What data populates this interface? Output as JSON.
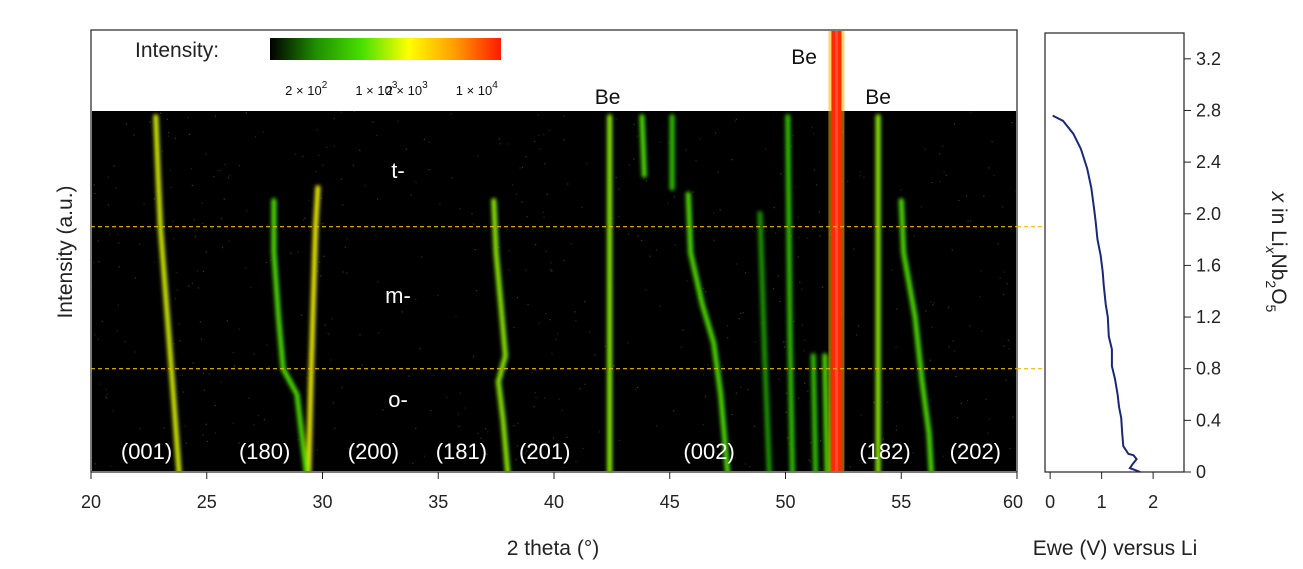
{
  "chart_data": [
    {
      "type": "heatmap",
      "title": "",
      "xlabel": "2 theta (°)",
      "ylabel": "Intensity (a.u.)",
      "xlim": [
        20,
        60
      ],
      "xticks": [
        20,
        25,
        30,
        35,
        40,
        45,
        50,
        55,
        60
      ],
      "colorbar": {
        "label": "Intensity:",
        "scale": "log",
        "ticks": [
          {
            "value": 200,
            "base": "2 × 10",
            "exp": "2"
          },
          {
            "value": 1000,
            "base": "1 × 10",
            "exp": "3"
          },
          {
            "value": 2000,
            "base": "2 × 10",
            "exp": "3"
          },
          {
            "value": 10000,
            "base": "1 × 10",
            "exp": "4"
          }
        ],
        "colors": [
          "#000000",
          "#1f8f00",
          "#49e000",
          "#ffff00",
          "#ff9d00",
          "#ff1a00"
        ]
      },
      "phases": [
        "t-",
        "m-",
        "o-"
      ],
      "phase_boundaries_x": [
        1.9,
        0.8
      ],
      "peak_labels": [
        {
          "text": "(001)",
          "x": 22.4
        },
        {
          "text": "(180)",
          "x": 27.5
        },
        {
          "text": "(200)",
          "x": 32.2
        },
        {
          "text": "(181)",
          "x": 36.0
        },
        {
          "text": "(201)",
          "x": 39.6
        },
        {
          "text": "(002)",
          "x": 46.7
        },
        {
          "text": "(182)",
          "x": 54.3
        },
        {
          "text": "(202)",
          "x": 58.2
        }
      ],
      "be_peaks": [
        {
          "text": "Be",
          "x": 42.4
        },
        {
          "text": "Be",
          "x": 52.1
        },
        {
          "text": "Be",
          "x": 54.0
        }
      ],
      "traces": [
        {
          "name": "(001)",
          "intensity": 0.72,
          "points": [
            [
              22.8,
              2.75
            ],
            [
              22.9,
              2.3
            ],
            [
              23.0,
              1.9
            ],
            [
              23.3,
              1.2
            ],
            [
              23.6,
              0.5
            ],
            [
              23.8,
              0.0
            ]
          ]
        },
        {
          "name": "(180) strong",
          "intensity": 0.75,
          "points": [
            [
              29.8,
              2.2
            ],
            [
              29.7,
              1.9
            ],
            [
              29.6,
              1.3
            ],
            [
              29.5,
              0.7
            ],
            [
              29.4,
              0.0
            ]
          ]
        },
        {
          "name": "(180) weak",
          "intensity": 0.55,
          "points": [
            [
              27.9,
              2.1
            ],
            [
              27.9,
              1.7
            ],
            [
              28.1,
              1.2
            ],
            [
              28.3,
              0.8
            ],
            [
              28.9,
              0.6
            ],
            [
              29.3,
              0.0
            ]
          ]
        },
        {
          "name": "(201)",
          "intensity": 0.6,
          "points": [
            [
              37.4,
              2.1
            ],
            [
              37.5,
              1.7
            ],
            [
              37.7,
              1.3
            ],
            [
              37.9,
              0.9
            ],
            [
              37.6,
              0.7
            ],
            [
              37.8,
              0.4
            ],
            [
              38.0,
              0.0
            ]
          ]
        },
        {
          "name": "(002)",
          "intensity": 0.55,
          "points": [
            [
              45.8,
              2.15
            ],
            [
              45.9,
              1.7
            ],
            [
              46.4,
              1.3
            ],
            [
              46.9,
              1.0
            ],
            [
              47.2,
              0.6
            ],
            [
              47.4,
              0.2
            ],
            [
              47.5,
              0.0
            ]
          ]
        },
        {
          "name": "(202)",
          "intensity": 0.5,
          "points": [
            [
              55.0,
              2.1
            ],
            [
              55.1,
              1.7
            ],
            [
              55.6,
              1.2
            ],
            [
              55.9,
              0.7
            ],
            [
              56.2,
              0.3
            ],
            [
              56.3,
              0.0
            ]
          ]
        },
        {
          "name": "Be 42.4",
          "intensity": 0.6,
          "points": [
            [
              42.4,
              2.75
            ],
            [
              42.4,
              0.0
            ]
          ]
        },
        {
          "name": "Be 54.0",
          "intensity": 0.65,
          "points": [
            [
              54.0,
              2.75
            ],
            [
              54.0,
              0.0
            ]
          ]
        },
        {
          "name": "45.1 line",
          "intensity": 0.45,
          "points": [
            [
              45.1,
              2.75
            ],
            [
              45.1,
              2.2
            ]
          ]
        },
        {
          "name": "43.8 blob",
          "intensity": 0.55,
          "points": [
            [
              43.8,
              2.75
            ],
            [
              43.9,
              2.3
            ]
          ]
        },
        {
          "name": "50.3 line",
          "intensity": 0.45,
          "points": [
            [
              50.1,
              2.75
            ],
            [
              50.2,
              1.0
            ],
            [
              50.3,
              0.0
            ]
          ]
        },
        {
          "name": "51.3 line",
          "intensity": 0.45,
          "points": [
            [
              51.2,
              0.9
            ],
            [
              51.3,
              0.0
            ]
          ]
        },
        {
          "name": "51.8 line",
          "intensity": 0.5,
          "points": [
            [
              51.7,
              0.9
            ],
            [
              51.8,
              0.0
            ]
          ]
        },
        {
          "name": "49.0 faint",
          "intensity": 0.3,
          "points": [
            [
              48.9,
              2.0
            ],
            [
              49.1,
              0.9
            ],
            [
              49.3,
              0.0
            ]
          ]
        }
      ],
      "intense_peak": {
        "name": "Be 52.2",
        "x": 52.2
      }
    },
    {
      "type": "line",
      "xlabel": "Ewe (V) versus Li",
      "ylabel_parts": {
        "pre": "x",
        "mid1": " in Li",
        "sub_x": "x",
        "mid2": "Nb",
        "sub_2": "2",
        "mid3": "O",
        "sub_5": "5"
      },
      "xlim": [
        -0.1,
        2.6
      ],
      "ylim": [
        0,
        3.4
      ],
      "xticks": [
        0,
        1,
        2
      ],
      "yticks": [
        "0",
        "0.4",
        "0.8",
        "1.2",
        "1.6",
        "2.0",
        "2.4",
        "2.8",
        "3.2"
      ],
      "ytick_values": [
        0,
        0.4,
        0.8,
        1.2,
        1.6,
        2.0,
        2.4,
        2.8,
        3.2
      ],
      "color": "#1a2775",
      "points": [
        [
          1.75,
          0.0
        ],
        [
          1.55,
          0.03
        ],
        [
          1.6,
          0.06
        ],
        [
          1.68,
          0.1
        ],
        [
          1.62,
          0.13
        ],
        [
          1.52,
          0.14
        ],
        [
          1.42,
          0.2
        ],
        [
          1.4,
          0.3
        ],
        [
          1.38,
          0.42
        ],
        [
          1.34,
          0.5
        ],
        [
          1.31,
          0.6
        ],
        [
          1.26,
          0.72
        ],
        [
          1.2,
          0.82
        ],
        [
          1.2,
          0.95
        ],
        [
          1.14,
          1.05
        ],
        [
          1.12,
          1.2
        ],
        [
          1.08,
          1.3
        ],
        [
          1.04,
          1.45
        ],
        [
          1.02,
          1.55
        ],
        [
          0.98,
          1.68
        ],
        [
          0.92,
          1.8
        ],
        [
          0.88,
          1.95
        ],
        [
          0.85,
          2.05
        ],
        [
          0.8,
          2.2
        ],
        [
          0.72,
          2.35
        ],
        [
          0.6,
          2.5
        ],
        [
          0.45,
          2.62
        ],
        [
          0.25,
          2.72
        ],
        [
          0.05,
          2.76
        ]
      ]
    }
  ]
}
